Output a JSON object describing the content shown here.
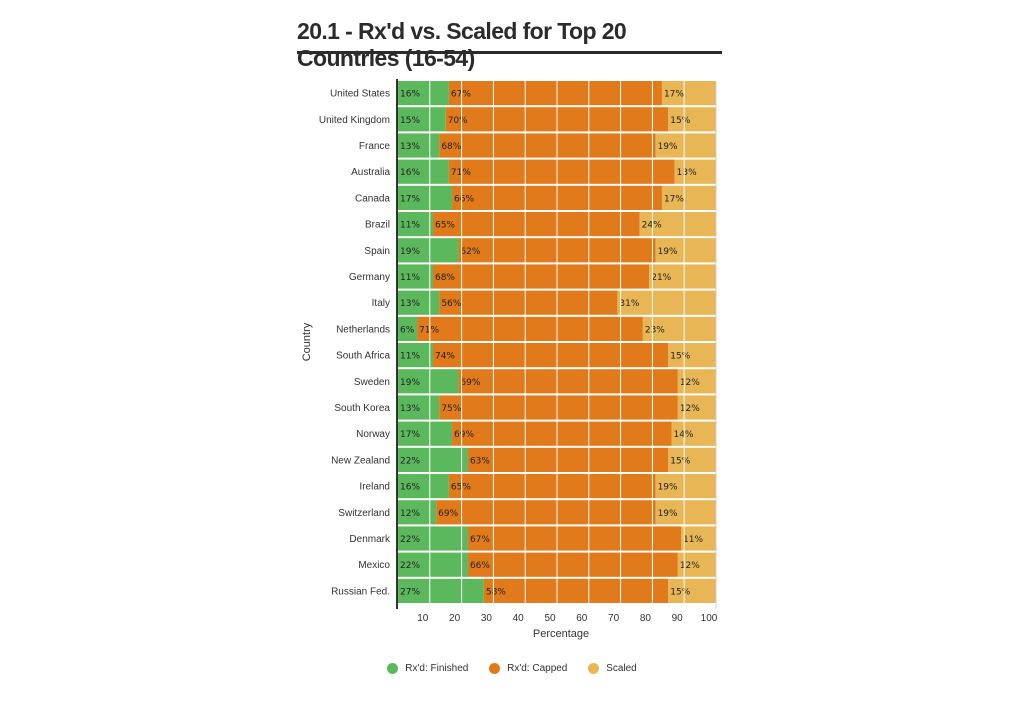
{
  "chart_data": {
    "type": "bar",
    "orientation": "horizontal",
    "stacked": true,
    "title": "20.1 - Rx'd vs. Scaled for Top 20 Countries (16-54)",
    "xlabel": "Percentage",
    "ylabel": "Country",
    "xlim": [
      0,
      100
    ],
    "xticks": [
      10,
      20,
      30,
      40,
      50,
      60,
      70,
      80,
      90,
      100
    ],
    "categories": [
      "United States",
      "United Kingdom",
      "France",
      "Australia",
      "Canada",
      "Brazil",
      "Spain",
      "Germany",
      "Italy",
      "Netherlands",
      "South Africa",
      "Sweden",
      "South Korea",
      "Norway",
      "New Zealand",
      "Ireland",
      "Switzerland",
      "Denmark",
      "Mexico",
      "Russian Fed."
    ],
    "series": [
      {
        "name": "Rx'd: Finished",
        "color": "#5cb85c",
        "values": [
          16,
          15,
          13,
          16,
          17,
          11,
          19,
          11,
          13,
          6,
          11,
          19,
          13,
          17,
          22,
          16,
          12,
          22,
          22,
          27
        ]
      },
      {
        "name": "Rx'd: Capped",
        "color": "#e07a1a",
        "values": [
          67,
          70,
          68,
          71,
          66,
          65,
          62,
          68,
          56,
          71,
          74,
          69,
          75,
          69,
          63,
          65,
          69,
          67,
          66,
          58
        ]
      },
      {
        "name": "Scaled",
        "color": "#e8b654",
        "values": [
          17,
          15,
          19,
          13,
          17,
          24,
          19,
          21,
          31,
          23,
          15,
          12,
          12,
          14,
          15,
          19,
          19,
          11,
          12,
          15
        ]
      }
    ],
    "legend_position": "bottom-center"
  }
}
